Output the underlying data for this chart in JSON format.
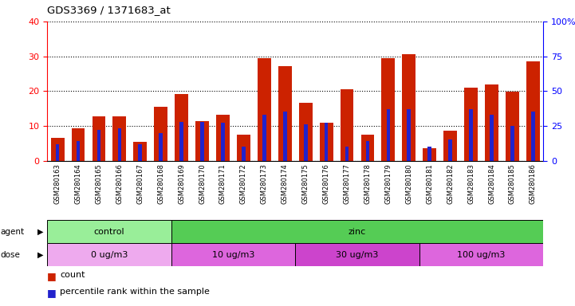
{
  "title": "GDS3369 / 1371683_at",
  "categories": [
    "GSM280163",
    "GSM280164",
    "GSM280165",
    "GSM280166",
    "GSM280167",
    "GSM280168",
    "GSM280169",
    "GSM280170",
    "GSM280171",
    "GSM280172",
    "GSM280173",
    "GSM280174",
    "GSM280175",
    "GSM280176",
    "GSM280177",
    "GSM280178",
    "GSM280179",
    "GSM280180",
    "GSM280181",
    "GSM280182",
    "GSM280183",
    "GSM280184",
    "GSM280185",
    "GSM280186"
  ],
  "count_values": [
    6.5,
    9.3,
    12.8,
    12.7,
    5.5,
    15.4,
    19.2,
    11.3,
    13.2,
    7.5,
    29.5,
    27.2,
    16.7,
    11.0,
    20.5,
    7.5,
    29.5,
    30.5,
    3.5,
    8.5,
    21.0,
    22.0,
    19.8,
    28.5
  ],
  "percentile_values": [
    12,
    14,
    22,
    23,
    12,
    20,
    28,
    28,
    27,
    10,
    33,
    35,
    26,
    27,
    10,
    14,
    37,
    37,
    10,
    15,
    37,
    33,
    25,
    35
  ],
  "bar_color": "#cc2200",
  "pct_color": "#2222cc",
  "left_ylim": [
    0,
    40
  ],
  "right_ylim": [
    0,
    100
  ],
  "left_yticks": [
    0,
    10,
    20,
    30,
    40
  ],
  "right_yticks": [
    0,
    25,
    50,
    75,
    100
  ],
  "right_yticklabels": [
    "0",
    "25",
    "50",
    "75",
    "100%"
  ],
  "agent_groups": [
    {
      "label": "control",
      "start": 0,
      "end": 6,
      "color": "#99ee99"
    },
    {
      "label": "zinc",
      "start": 6,
      "end": 24,
      "color": "#55cc55"
    }
  ],
  "dose_groups": [
    {
      "label": "0 ug/m3",
      "start": 0,
      "end": 6,
      "color": "#eeaaee"
    },
    {
      "label": "10 ug/m3",
      "start": 6,
      "end": 12,
      "color": "#dd66dd"
    },
    {
      "label": "30 ug/m3",
      "start": 12,
      "end": 18,
      "color": "#cc44cc"
    },
    {
      "label": "100 ug/m3",
      "start": 18,
      "end": 24,
      "color": "#dd66dd"
    }
  ],
  "agent_label": "agent",
  "dose_label": "dose",
  "legend_count": "count",
  "legend_pct": "percentile rank within the sample",
  "plot_bg": "#ffffff",
  "xtick_bg": "#dddddd",
  "bar_width": 0.65,
  "pct_bar_width": 0.18
}
